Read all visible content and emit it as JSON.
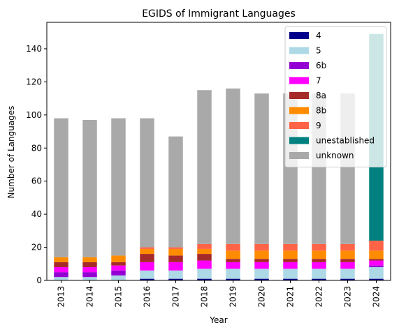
{
  "chart_data": {
    "type": "bar",
    "stacked": true,
    "title": "EGIDS of Immigrant Languages",
    "xlabel": "Year",
    "ylabel": "Number of Languages",
    "ylim": [
      0,
      156
    ],
    "yticks": [
      0,
      20,
      40,
      60,
      80,
      100,
      120,
      140
    ],
    "categories": [
      "2013",
      "2014",
      "2015",
      "2016",
      "2017",
      "2018",
      "2019",
      "2020",
      "2021",
      "2022",
      "2023",
      "2024"
    ],
    "legend_position": "top-right",
    "grid": false,
    "series": [
      {
        "name": "4",
        "color": "#00008b",
        "values": [
          0,
          0,
          0,
          1,
          1,
          1,
          1,
          1,
          1,
          1,
          1,
          1
        ]
      },
      {
        "name": "5",
        "color": "#add8e6",
        "values": [
          2,
          2,
          3,
          5,
          5,
          6,
          6,
          6,
          6,
          6,
          6,
          7
        ]
      },
      {
        "name": "6b",
        "color": "#9400d3",
        "values": [
          3,
          3,
          3,
          0,
          0,
          0,
          0,
          0,
          0,
          0,
          0,
          1
        ]
      },
      {
        "name": "7",
        "color": "#ff00ff",
        "values": [
          3,
          3,
          3,
          5,
          5,
          5,
          4,
          4,
          4,
          4,
          4,
          3
        ]
      },
      {
        "name": "8a",
        "color": "#a52a2a",
        "values": [
          3,
          3,
          2,
          5,
          4,
          4,
          2,
          2,
          2,
          2,
          2,
          1
        ]
      },
      {
        "name": "8b",
        "color": "#ff8c00",
        "values": [
          3,
          3,
          4,
          3,
          4,
          3,
          5,
          5,
          5,
          5,
          5,
          5
        ]
      },
      {
        "name": "9",
        "color": "#ff6347",
        "values": [
          0,
          0,
          0,
          1,
          1,
          3,
          4,
          4,
          4,
          4,
          4,
          6
        ]
      },
      {
        "name": "unestablished",
        "color": "#008080",
        "values": [
          0,
          0,
          0,
          0,
          0,
          0,
          0,
          0,
          0,
          0,
          0,
          125
        ]
      },
      {
        "name": "unknown",
        "color": "#a9a9a9",
        "values": [
          84,
          83,
          83,
          78,
          67,
          93,
          94,
          91,
          91,
          91,
          91,
          0
        ]
      }
    ]
  }
}
